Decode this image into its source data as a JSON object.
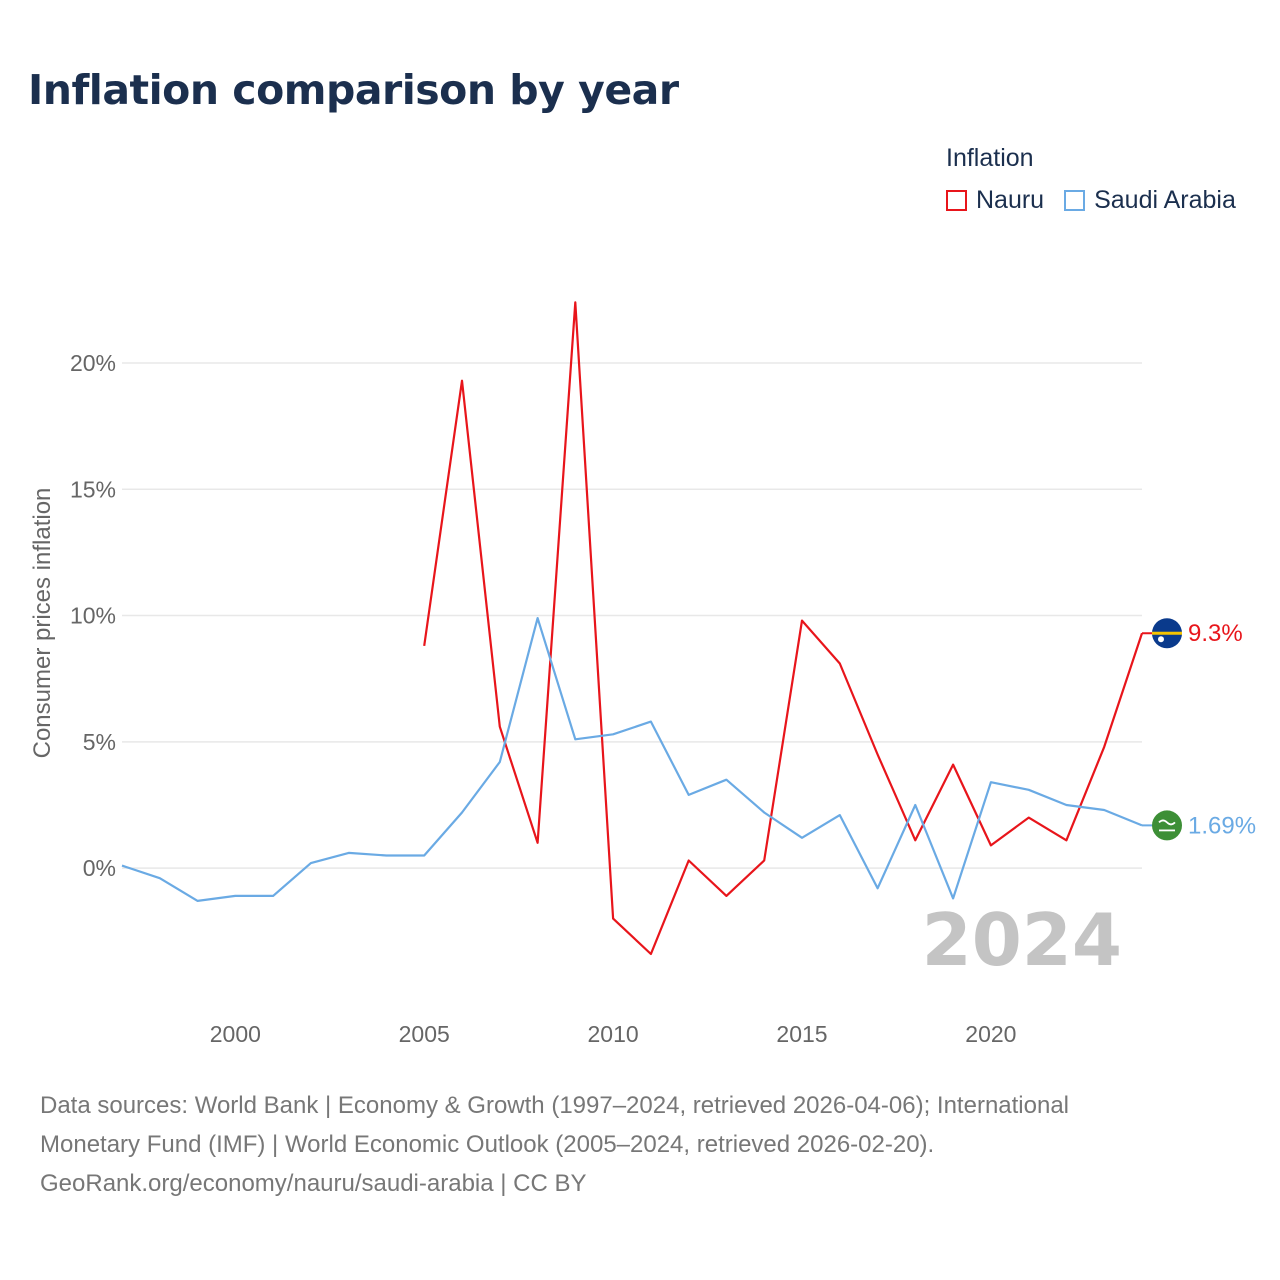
{
  "title": "Inflation comparison by year",
  "legend": {
    "title": "Inflation",
    "items": [
      {
        "name": "Nauru",
        "color": "#e8151b"
      },
      {
        "name": "Saudi Arabia",
        "color": "#6aaae4"
      }
    ]
  },
  "footer": {
    "line1": "Data sources: World Bank | Economy & Growth (1997–2024, retrieved 2026-04-06); International",
    "line2": "Monetary Fund (IMF) | World Economic Outlook (2005–2024, retrieved 2026-02-20).",
    "line3": "GeoRank.org/economy/nauru/saudi-arabia | CC BY"
  },
  "chart_data": {
    "type": "line",
    "title": "Inflation comparison by year",
    "xlabel": "",
    "ylabel": "Consumer prices inflation",
    "xlim": [
      1997,
      2024
    ],
    "ylim": [
      -5.5,
      24
    ],
    "xticks": [
      2000,
      2005,
      2010,
      2015,
      2020
    ],
    "yticks": [
      0,
      5,
      10,
      15,
      20
    ],
    "ytick_suffix": "%",
    "grid": true,
    "watermark_year": "2024",
    "legend_position": "top-right",
    "series": [
      {
        "name": "Nauru",
        "color": "#e8151b",
        "end_label": "9.3%",
        "x": [
          2005,
          2006,
          2007,
          2008,
          2009,
          2010,
          2011,
          2012,
          2013,
          2014,
          2015,
          2016,
          2017,
          2018,
          2019,
          2020,
          2021,
          2022,
          2023,
          2024
        ],
        "values": [
          8.8,
          19.3,
          5.6,
          1.0,
          22.4,
          -2.0,
          -3.4,
          0.3,
          -1.1,
          0.3,
          9.8,
          8.1,
          4.5,
          1.1,
          4.1,
          0.9,
          2.0,
          1.1,
          4.8,
          9.3
        ]
      },
      {
        "name": "Saudi Arabia",
        "color": "#6aaae4",
        "end_label": "1.69%",
        "x": [
          1997,
          1998,
          1999,
          2000,
          2001,
          2002,
          2003,
          2004,
          2005,
          2006,
          2007,
          2008,
          2009,
          2010,
          2011,
          2012,
          2013,
          2014,
          2015,
          2016,
          2017,
          2018,
          2019,
          2020,
          2021,
          2022,
          2023,
          2024
        ],
        "values": [
          0.1,
          -0.4,
          -1.3,
          -1.1,
          -1.1,
          0.2,
          0.6,
          0.5,
          0.5,
          2.2,
          4.2,
          9.9,
          5.1,
          5.3,
          5.8,
          2.9,
          3.5,
          2.2,
          1.2,
          2.1,
          -0.8,
          2.5,
          -1.2,
          3.4,
          3.1,
          2.5,
          2.3,
          1.69
        ]
      }
    ]
  }
}
